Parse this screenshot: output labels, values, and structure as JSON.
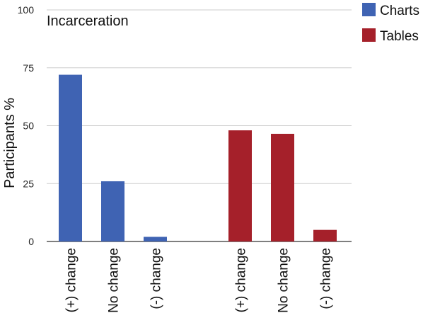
{
  "chart_data": {
    "type": "bar",
    "title": "Incarceration",
    "ylabel": "Participants %",
    "xlabel": "",
    "ylim": [
      0,
      100
    ],
    "yticks": [
      0,
      25,
      50,
      75,
      100
    ],
    "grid": true,
    "legend_position": "top-right",
    "groups": [
      {
        "series": "Charts",
        "categories": [
          "(+) change",
          "No change",
          "(-) change"
        ],
        "values": [
          72,
          26,
          2
        ]
      },
      {
        "series": "Tables",
        "categories": [
          "(+) change",
          "No change",
          "(-) change"
        ],
        "values": [
          48,
          46.5,
          5
        ]
      }
    ],
    "series": [
      {
        "name": "Charts",
        "color": "#3f63b3"
      },
      {
        "name": "Tables",
        "color": "#a5202a"
      }
    ]
  }
}
